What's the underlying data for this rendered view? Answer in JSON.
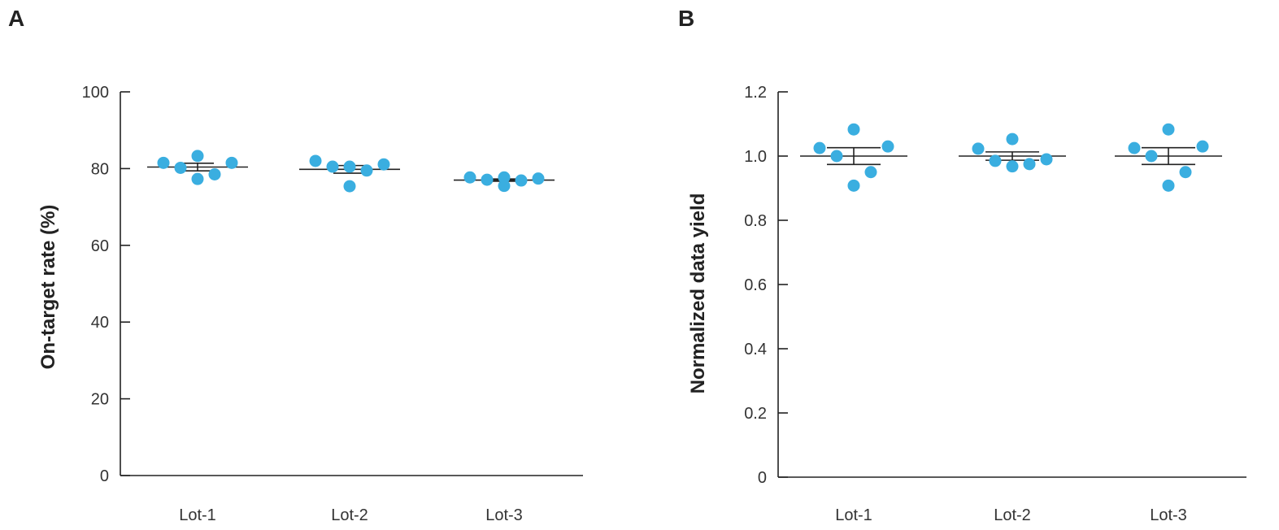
{
  "chart_data": [
    {
      "type": "scatter",
      "panel_label": "A",
      "title": "",
      "xlabel": "",
      "ylabel": "On-target rate (%)",
      "ylim": [
        0,
        100
      ],
      "yticks": [
        0,
        20,
        40,
        60,
        80,
        100
      ],
      "ytick_labels": [
        "0",
        "20",
        "40",
        "60",
        "80",
        "100"
      ],
      "categories": [
        "Lot-1",
        "Lot-2",
        "Lot-3"
      ],
      "point_color": "#3aaee0",
      "groups": [
        {
          "category": "Lot-1",
          "points": [
            81.5,
            80.2,
            83.3,
            77.3,
            78.5,
            81.5
          ],
          "mean": 80.4,
          "error": 1.0
        },
        {
          "category": "Lot-2",
          "points": [
            82.0,
            80.5,
            75.4,
            80.5,
            79.5,
            81.1
          ],
          "mean": 79.8,
          "error": 1.0
        },
        {
          "category": "Lot-3",
          "points": [
            77.7,
            77.1,
            75.5,
            77.7,
            76.9,
            77.4
          ],
          "mean": 77.0,
          "error": 0.3
        }
      ]
    },
    {
      "type": "scatter",
      "panel_label": "B",
      "title": "",
      "xlabel": "",
      "ylabel": "Normalized data yield",
      "ylim": [
        0,
        1.2
      ],
      "yticks": [
        0,
        0.2,
        0.4,
        0.6,
        0.8,
        1.0,
        1.2
      ],
      "ytick_labels": [
        "0",
        "0.2",
        "0.4",
        "0.6",
        "0.8",
        "1.0",
        "1.2"
      ],
      "categories": [
        "Lot-1",
        "Lot-2",
        "Lot-3"
      ],
      "point_color": "#3aaee0",
      "groups": [
        {
          "category": "Lot-1",
          "points": [
            1.025,
            1.0,
            1.083,
            0.908,
            0.95,
            1.03
          ],
          "mean": 1.0,
          "error": 0.026
        },
        {
          "category": "Lot-2",
          "points": [
            1.023,
            0.985,
            1.053,
            0.968,
            0.975,
            0.99
          ],
          "mean": 1.0,
          "error": 0.013
        },
        {
          "category": "Lot-3",
          "points": [
            1.025,
            1.0,
            1.083,
            0.908,
            0.95,
            1.03
          ],
          "mean": 1.0,
          "error": 0.026
        }
      ]
    }
  ]
}
